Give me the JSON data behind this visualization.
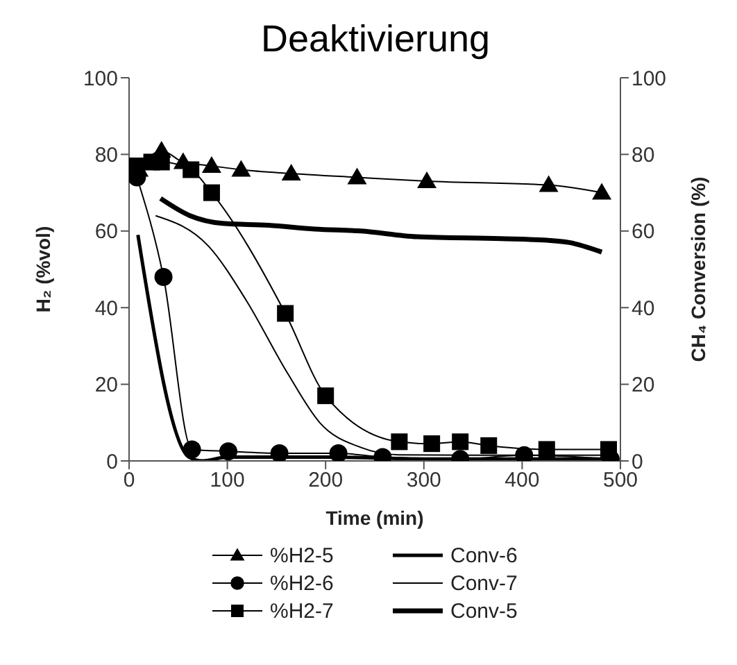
{
  "chart_data": {
    "type": "line",
    "title": "Deaktivierung",
    "xlabel": "Time (min)",
    "ylabel": "H₂ (%vol)",
    "y2label": "CH₄ Conversion (%)",
    "xlim": [
      0,
      500
    ],
    "xticks": [
      0,
      100,
      200,
      300,
      400,
      500
    ],
    "ylim": [
      0,
      100
    ],
    "yticks": [
      0,
      20,
      40,
      60,
      80,
      100
    ],
    "y2lim": [
      0,
      100
    ],
    "y2ticks": [
      0,
      20,
      40,
      60,
      80,
      100
    ],
    "grid": false,
    "legend": "bottom",
    "series": [
      {
        "name": "%H2-5",
        "color": "#000000",
        "marker": "triangle",
        "x": [
          10,
          33,
          55,
          84,
          114,
          165,
          232,
          303,
          427,
          481
        ],
        "values": [
          76,
          81,
          78,
          77,
          76,
          75,
          74,
          73,
          72,
          70
        ]
      },
      {
        "name": "%H2-6",
        "color": "#000000",
        "marker": "circle",
        "x": [
          8,
          35,
          64,
          101,
          153,
          213,
          258,
          337,
          402,
          490
        ],
        "values": [
          74,
          48,
          3,
          2.5,
          2,
          2,
          1,
          0.5,
          1.5,
          0.5
        ]
      },
      {
        "name": "%H2-7",
        "color": "#000000",
        "marker": "square",
        "x": [
          8,
          23,
          33,
          63,
          84,
          159,
          200,
          275,
          308,
          337,
          366,
          425,
          488
        ],
        "values": [
          77,
          78,
          78,
          76,
          70,
          38.5,
          17,
          5,
          4.5,
          5,
          4,
          3,
          3
        ]
      },
      {
        "name": "Conv-6",
        "color": "#000000",
        "marker": "none",
        "x": [
          9,
          61,
          75,
          100,
          200,
          300,
          400,
          490
        ],
        "values": [
          59,
          1,
          0,
          1,
          1,
          0.5,
          0.5,
          0.5
        ]
      },
      {
        "name": "Conv-7",
        "color": "#000000",
        "marker": "none",
        "x": [
          27,
          81,
          119,
          161,
          194,
          236,
          274,
          350,
          420,
          490
        ],
        "values": [
          64,
          56,
          42,
          23,
          10,
          3.5,
          1.6,
          1.5,
          1.5,
          1.5
        ]
      },
      {
        "name": "Conv-5",
        "color": "#000000",
        "marker": "none",
        "x": [
          32,
          62,
          95,
          142,
          189,
          236,
          293,
          378,
          425,
          448,
          481
        ],
        "values": [
          68.5,
          64,
          62,
          61.5,
          60.5,
          60,
          58.5,
          58,
          57.6,
          57,
          54.5
        ]
      }
    ]
  }
}
